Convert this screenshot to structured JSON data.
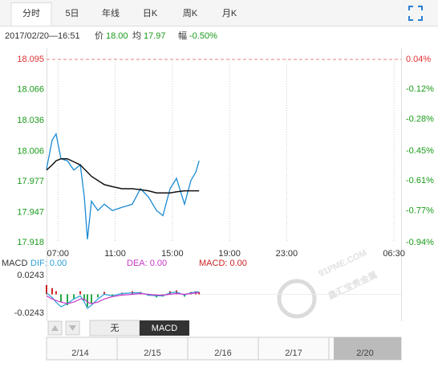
{
  "header": {
    "tabs": [
      "分时",
      "5日",
      "年线",
      "日K",
      "周K",
      "月K"
    ],
    "datetime": "2017/02/20—16:51",
    "price_label": "价",
    "price": "18.00",
    "avg_label": "均",
    "avg": "17.97",
    "change_label": "幅",
    "change": "-0.50%"
  },
  "chart_data": [
    {
      "type": "line",
      "x": [
        6.2,
        6.59,
        6.87,
        7.21,
        7.66,
        8.11,
        8.56,
        8.84,
        9.06,
        9.34,
        9.79,
        10.24,
        10.8,
        11.47,
        12.2,
        12.77,
        13.33,
        13.89,
        14.34,
        14.84,
        15.29,
        15.85,
        16.3,
        16.64,
        16.87
      ],
      "series": [
        {
          "color": "#1a8ad4",
          "values": [
            17.989,
            18.017,
            18.023,
            17.999,
            17.997,
            17.988,
            17.993,
            17.962,
            17.921,
            17.958,
            17.949,
            17.955,
            17.949,
            17.952,
            17.955,
            17.97,
            17.962,
            17.949,
            17.944,
            17.97,
            17.98,
            17.955,
            17.978,
            17.986,
            17.997
          ]
        },
        {
          "color": "#111111",
          "values": [
            17.988,
            17.993,
            17.997,
            17.999,
            17.999,
            17.996,
            17.993,
            17.989,
            17.986,
            17.982,
            17.978,
            17.974,
            17.972,
            17.97,
            17.97,
            17.969,
            17.968,
            17.966,
            17.966,
            17.966,
            17.967,
            17.968,
            17.968,
            17.968,
            17.968
          ]
        }
      ],
      "xlim": [
        6.2,
        31
      ],
      "xticks": [
        {
          "value": 7,
          "label": "07:00"
        },
        {
          "value": 11,
          "label": "11:00"
        },
        {
          "value": 15,
          "label": "15:00"
        },
        {
          "value": 19,
          "label": "19:00"
        },
        {
          "value": 23,
          "label": "23:00"
        },
        {
          "value": 30.5,
          "label": "06:30"
        }
      ],
      "ylim": [
        17.918,
        18.095
      ],
      "yticks": [
        18.095,
        18.066,
        18.036,
        18.006,
        17.977,
        17.947,
        17.918
      ],
      "y2lim": [
        -0.94,
        0.04
      ],
      "y2ticks": [
        {
          "value": 0.04,
          "label": "0.04%"
        },
        {
          "value": -0.12,
          "label": "-0.12%"
        },
        {
          "value": -0.28,
          "label": "-0.28%"
        },
        {
          "value": -0.45,
          "label": "-0.45%"
        },
        {
          "value": -0.61,
          "label": "-0.61%"
        },
        {
          "value": -0.77,
          "label": "-0.77%"
        },
        {
          "value": -0.94,
          "label": "-0.94%"
        }
      ],
      "xgrid": true
    },
    {
      "type": "macd",
      "title": "MACD",
      "x": [
        6.2,
        6.59,
        6.87,
        7.21,
        7.66,
        8.11,
        8.56,
        8.84,
        9.06,
        9.34,
        9.79,
        10.24,
        10.8,
        11.47,
        12.2,
        12.77,
        13.33,
        13.89,
        14.34,
        14.84,
        15.29,
        15.85,
        16.3,
        16.64,
        16.87
      ],
      "xlim": [
        6.2,
        31
      ],
      "series": [
        {
          "name": "DIF: 0.00",
          "color": "#2a9fd6",
          "values": [
            0.002,
            -0.004,
            -0.01,
            -0.016,
            -0.012,
            -0.006,
            -0.002,
            -0.01,
            -0.018,
            -0.014,
            -0.006,
            0.0,
            -0.002,
            0.001,
            0.002,
            0.002,
            -0.001,
            -0.002,
            -0.002,
            0.002,
            0.003,
            -0.001,
            0.002,
            0.003,
            0.003
          ]
        },
        {
          "name": "DEA: 0.00",
          "color": "#c838c8",
          "values": [
            -0.002,
            -0.006,
            -0.008,
            -0.01,
            -0.012,
            -0.01,
            -0.006,
            -0.006,
            -0.01,
            -0.012,
            -0.01,
            -0.006,
            -0.003,
            -0.001,
            0.0,
            0.001,
            0.0,
            -0.001,
            -0.001,
            0.0,
            0.001,
            0.0,
            0.001,
            0.002,
            0.002
          ]
        },
        {
          "name": "MACD: 0.00",
          "color": "#cc2222",
          "up_color": "#cc2222",
          "down_color": "#22aa44",
          "values": [
            0.012,
            0.008,
            0.004,
            -0.01,
            -0.014,
            -0.006,
            0.004,
            -0.008,
            -0.016,
            -0.012,
            -0.004,
            0.003,
            -0.003,
            0.002,
            0.004,
            0.003,
            -0.002,
            -0.004,
            -0.003,
            0.004,
            0.005,
            -0.003,
            0.003,
            0.004,
            0.003
          ]
        }
      ],
      "ylim": [
        -0.0243,
        0.0243
      ],
      "yticks": [
        0.0243,
        -0.0243
      ]
    }
  ],
  "buttons": [
    "无",
    "MACD"
  ],
  "navigator": {
    "dates": [
      "2/14",
      "2/15",
      "2/16",
      "2/17",
      "2/20"
    ]
  },
  "watermark": {
    "site": "91PME.COM",
    "name": "鑫汇宝贵金属"
  }
}
